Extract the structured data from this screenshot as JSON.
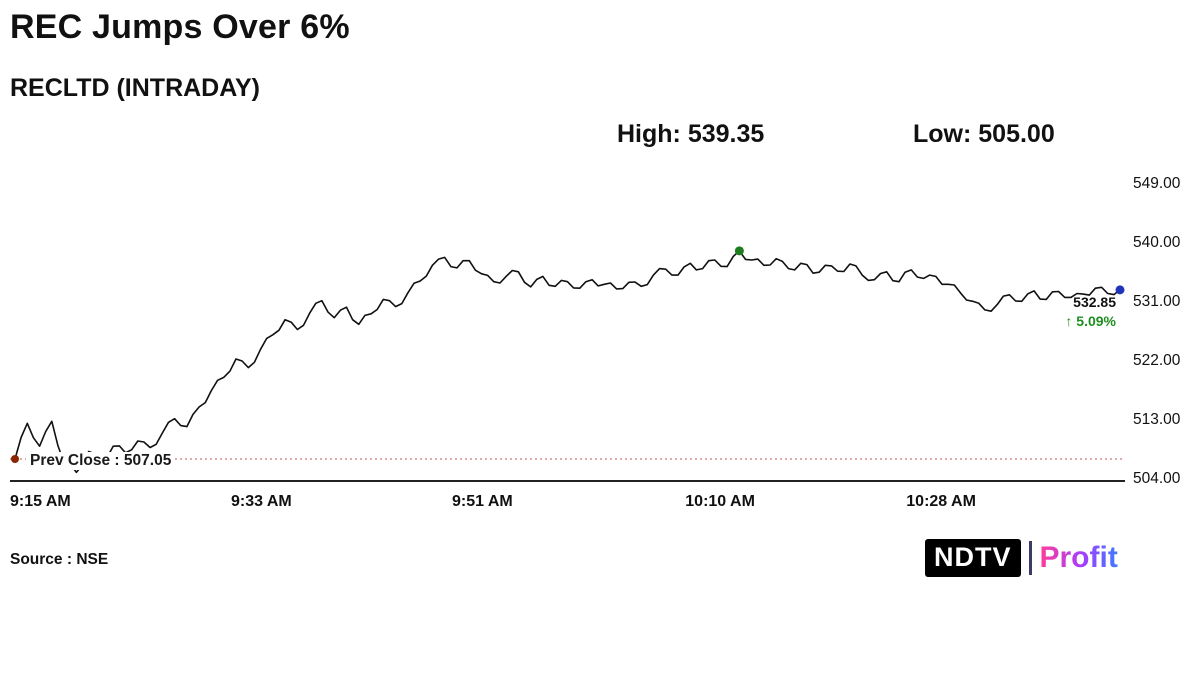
{
  "header": {
    "title": "REC Jumps Over 6%",
    "subtitle": "RECLTD (INTRADAY)",
    "high_label": "High: 539.35",
    "low_label": "Low: 505.00"
  },
  "footer": {
    "source": "Source : NSE",
    "logo_ndtv": "NDTV",
    "logo_profit": "Profit"
  },
  "chart_data": {
    "type": "line",
    "title": "RECLTD (INTRADAY)",
    "symbol": "RECLTD",
    "high": 539.35,
    "low": 505.0,
    "prev_close": 507.05,
    "prev_close_label": "Prev Close : 507.05",
    "last_price": 532.85,
    "last_price_label": "532.85",
    "change_label": "↑ 5.09%",
    "ylim": [
      504,
      549
    ],
    "y_tick_labels": [
      "549.00",
      "540.00",
      "531.00",
      "522.00",
      "513.00",
      "504.00"
    ],
    "y_tick_values": [
      549,
      540,
      531,
      522,
      513,
      504
    ],
    "x_tick_labels": [
      "9:15 AM",
      "9:33 AM",
      "9:51 AM",
      "10:10 AM",
      "10:28 AM"
    ],
    "x_tick_minutes": [
      0,
      18,
      36,
      55,
      73
    ],
    "x_total_minutes": 90,
    "grid": false,
    "legend": false,
    "line_color": "#111111",
    "axis_color": "#222222",
    "prev_close_line_color": "#d98f8f",
    "prev_close_dot_color": "#8b2500",
    "high_marker_color": "#1e7d1e",
    "end_marker_color": "#2233bb",
    "change_color": "#1e8f1e",
    "values": [
      507.05,
      512.5,
      509.0,
      512.8,
      506.5,
      505.0,
      508.2,
      506.8,
      509.0,
      508.0,
      509.8,
      508.8,
      511.0,
      513.2,
      512.0,
      515.0,
      517.5,
      519.5,
      522.3,
      521.0,
      523.8,
      526.0,
      528.3,
      526.8,
      529.3,
      531.2,
      528.6,
      530.2,
      527.6,
      529.2,
      531.4,
      530.3,
      532.4,
      534.2,
      536.6,
      537.8,
      536.2,
      537.3,
      535.3,
      534.1,
      534.9,
      535.6,
      533.3,
      534.9,
      533.4,
      534.1,
      533.1,
      534.4,
      533.7,
      533.0,
      534.0,
      533.4,
      535.1,
      536.0,
      535.1,
      536.9,
      536.1,
      537.4,
      536.4,
      538.8,
      537.4,
      536.6,
      537.6,
      536.1,
      536.9,
      535.4,
      536.6,
      535.7,
      536.8,
      535.1,
      534.4,
      535.6,
      534.1,
      535.9,
      534.6,
      534.9,
      533.7,
      532.4,
      531.1,
      529.8,
      530.6,
      532.1,
      531.1,
      532.7,
      531.4,
      532.6,
      531.7,
      532.2,
      533.1,
      532.3,
      532.85
    ]
  }
}
